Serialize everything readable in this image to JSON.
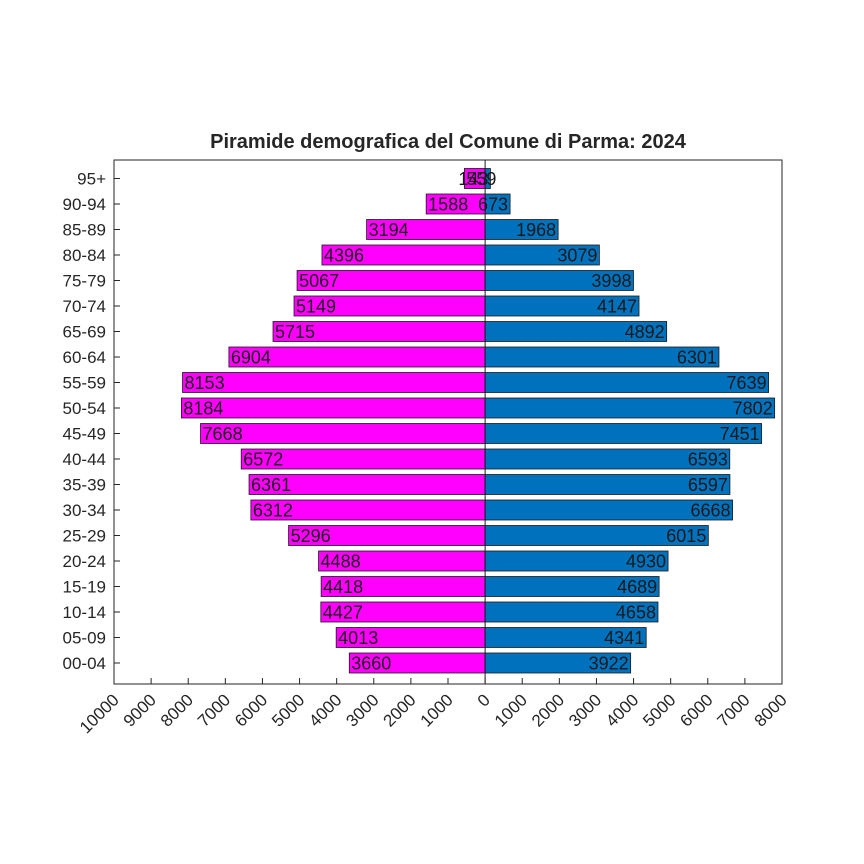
{
  "chart_data": {
    "type": "bar",
    "orientation": "horizontal",
    "title": "Piramide demografica del Comune di Parma: 2024",
    "categories": [
      "00-04",
      "05-09",
      "10-14",
      "15-19",
      "20-24",
      "25-29",
      "30-34",
      "35-39",
      "40-44",
      "45-49",
      "50-54",
      "55-59",
      "60-64",
      "65-69",
      "70-74",
      "75-79",
      "80-84",
      "85-89",
      "90-94",
      "95+"
    ],
    "series": [
      {
        "side": "left",
        "color": "#FF00FF",
        "values": [
          3660,
          4013,
          4427,
          4418,
          4488,
          5296,
          6312,
          6361,
          6572,
          7668,
          8184,
          8153,
          6904,
          5715,
          5149,
          5067,
          4396,
          3194,
          1588,
          559
        ]
      },
      {
        "side": "right",
        "color": "#0072BD",
        "values": [
          3922,
          4341,
          4658,
          4689,
          4930,
          6015,
          6668,
          6597,
          6593,
          7451,
          7802,
          7639,
          6301,
          4892,
          4147,
          3998,
          3079,
          1968,
          673,
          143
        ]
      }
    ],
    "xlim": [
      -10000,
      8000
    ],
    "xticks": [
      -10000,
      -9000,
      -8000,
      -7000,
      -6000,
      -5000,
      -4000,
      -3000,
      -2000,
      -1000,
      0,
      1000,
      2000,
      3000,
      4000,
      5000,
      6000,
      7000,
      8000
    ],
    "xtick_labels": [
      "10000",
      "9000",
      "8000",
      "7000",
      "6000",
      "5000",
      "4000",
      "3000",
      "2000",
      "1000",
      "0",
      "1000",
      "2000",
      "3000",
      "4000",
      "5000",
      "6000",
      "7000",
      "8000"
    ],
    "grid": false,
    "xlabel": "",
    "ylabel": ""
  }
}
